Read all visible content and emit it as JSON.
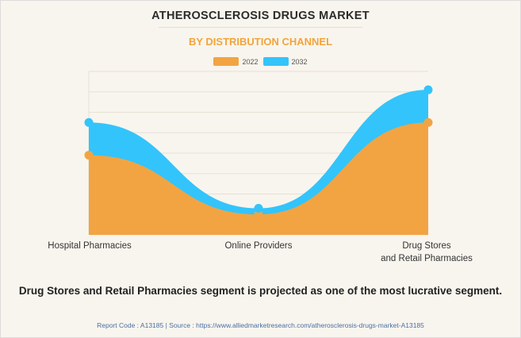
{
  "page": {
    "title": "ATHEROSCLEROSIS DRUGS MARKET",
    "subtitle": "BY DISTRIBUTION CHANNEL",
    "footer_note": "Drug Stores and Retail Pharmacies segment is projected as one of the most lucrative segment.",
    "source_line": "Report Code : A13185  |  Source : https://www.alliedmarketresearch.com/atherosclerosis-drugs-market-A13185"
  },
  "colors": {
    "series_2022": "#f2a443",
    "series_2032": "#33c4fb",
    "grid": "#e6e1d6"
  },
  "chart_data": {
    "type": "area",
    "title": "ATHEROSCLEROSIS DRUGS MARKET",
    "subtitle": "BY DISTRIBUTION CHANNEL",
    "categories": [
      "Hospital Pharmacies",
      "Online Providers",
      "Drug Stores\nand Retail Pharmacies"
    ],
    "series": [
      {
        "name": "2022",
        "values": [
          3.9,
          1.0,
          5.5
        ]
      },
      {
        "name": "2032",
        "values": [
          5.5,
          1.3,
          7.1
        ]
      }
    ],
    "ylim": [
      0,
      8
    ],
    "grid": true,
    "smooth": true,
    "legend": "top-center",
    "xlabel": "",
    "ylabel": ""
  }
}
